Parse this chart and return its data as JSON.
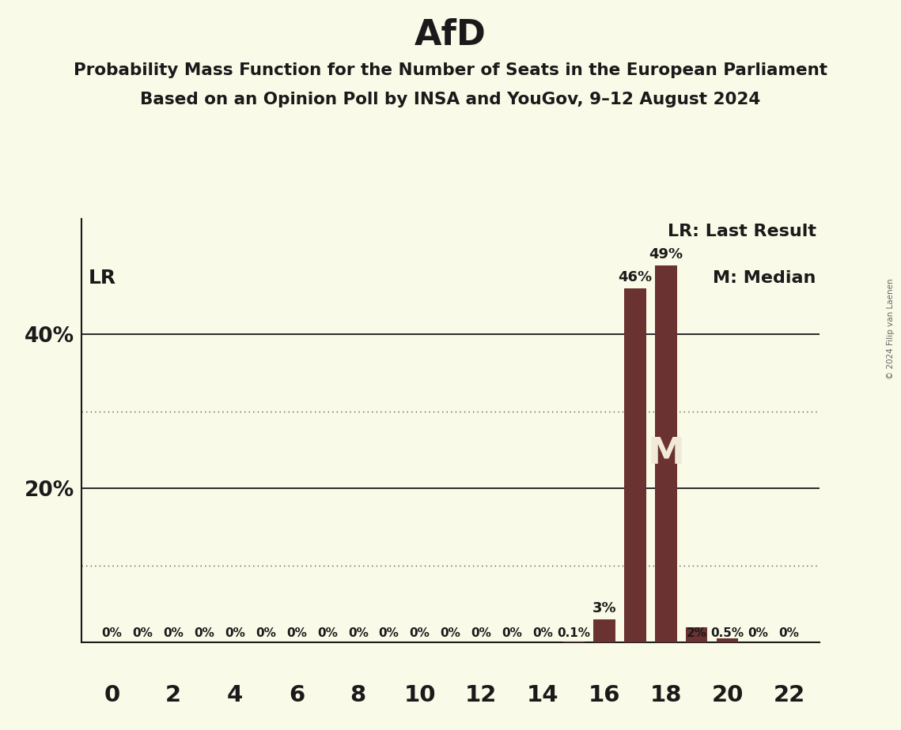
{
  "title": "AfD",
  "subtitle1": "Probability Mass Function for the Number of Seats in the European Parliament",
  "subtitle2": "Based on an Opinion Poll by INSA and YouGov, 9–12 August 2024",
  "copyright": "© 2024 Filip van Laenen",
  "x_min": -1,
  "x_max": 23,
  "y_min": 0,
  "y_max": 0.55,
  "seats": [
    0,
    1,
    2,
    3,
    4,
    5,
    6,
    7,
    8,
    9,
    10,
    11,
    12,
    13,
    14,
    15,
    16,
    17,
    18,
    19,
    20,
    21,
    22
  ],
  "probabilities": [
    0,
    0,
    0,
    0,
    0,
    0,
    0,
    0,
    0,
    0,
    0,
    0,
    0,
    0,
    0,
    0.001,
    0.03,
    0.46,
    0.49,
    0.02,
    0.005,
    0,
    0
  ],
  "bar_color": "#6B3232",
  "background_color": "#FAFAE8",
  "text_color": "#1A1A1A",
  "last_result_seat": 17,
  "median_seat": 18,
  "solid_gridlines": [
    0.2,
    0.4
  ],
  "dotted_gridlines": [
    0.1,
    0.3
  ],
  "bar_labels": {
    "0": "0%",
    "1": "0%",
    "2": "0%",
    "3": "0%",
    "4": "0%",
    "5": "0%",
    "6": "0%",
    "7": "0%",
    "8": "0%",
    "9": "0%",
    "10": "0%",
    "11": "0%",
    "12": "0%",
    "13": "0%",
    "14": "0%",
    "15": "0.1%",
    "16": "3%",
    "17": "46%",
    "18": "49%",
    "19": "2%",
    "20": "0.5%",
    "21": "0%",
    "22": "0%"
  },
  "legend_lr": "LR: Last Result",
  "legend_m": "M: Median",
  "lr_label": "LR",
  "m_label": "M"
}
